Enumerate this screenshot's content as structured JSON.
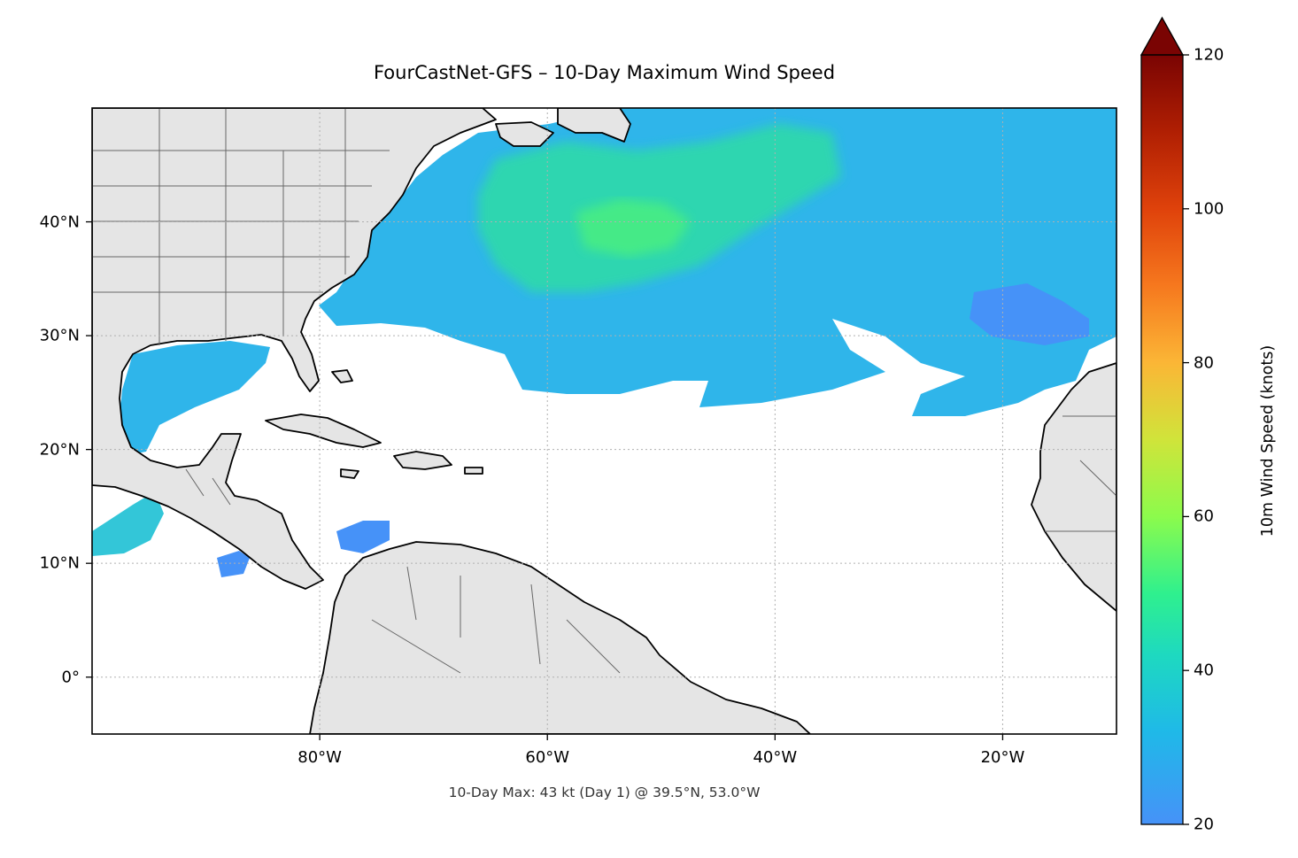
{
  "map": {
    "title": "FourCastNet-GFS – 10-Day Maximum Wind Speed",
    "footnote": "10-Day Max: 43 kt (Day 1) @ 39.5°N, 53.0°W",
    "extent": {
      "lon": [
        -100,
        -10
      ],
      "lat": [
        -5,
        50
      ]
    },
    "projection": "PlateCarree",
    "gridlines": true,
    "land_color": "#e5e5e5",
    "ocean_color": "#ffffff",
    "coastline_color": "#000000",
    "border_color": "#666666",
    "lon_ticks": [
      {
        "value": -80,
        "label": "80°W"
      },
      {
        "value": -60,
        "label": "60°W"
      },
      {
        "value": -40,
        "label": "40°W"
      },
      {
        "value": -20,
        "label": "20°W"
      }
    ],
    "lat_ticks": [
      {
        "value": 40,
        "label": "40°N"
      },
      {
        "value": 30,
        "label": "30°N"
      },
      {
        "value": 20,
        "label": "20°N"
      },
      {
        "value": 10,
        "label": "10°N"
      },
      {
        "value": 0,
        "label": "0°"
      }
    ],
    "max_point": {
      "lat": 39.5,
      "lon": -53.0,
      "value_kt": 43,
      "day": 1
    }
  },
  "colorbar": {
    "label": "10m Wind Speed (knots)",
    "range": [
      20,
      120
    ],
    "extend": "max",
    "colormap": "turbo",
    "ticks": [
      20,
      40,
      60,
      80,
      100,
      120
    ]
  }
}
